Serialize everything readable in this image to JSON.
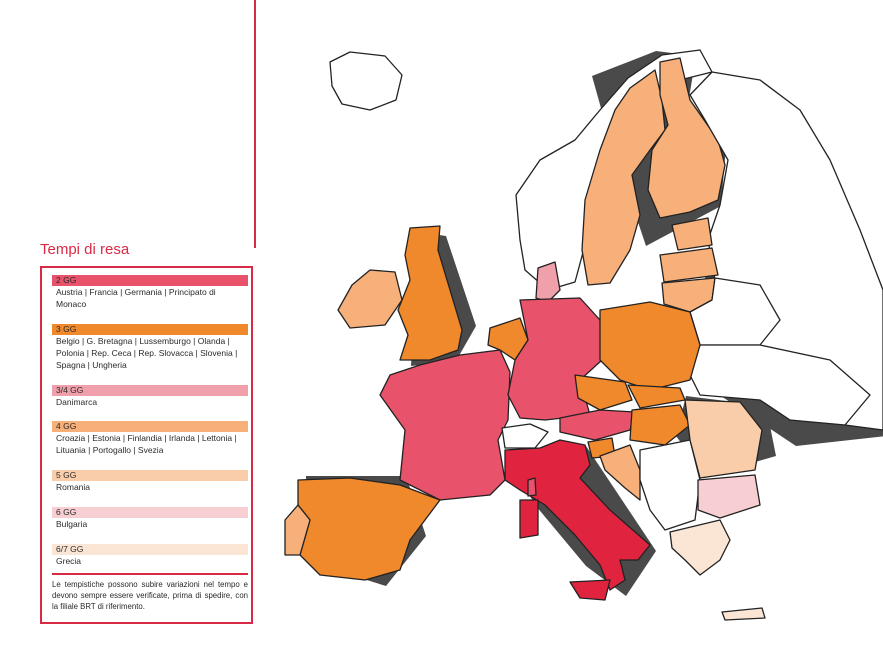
{
  "legend": {
    "title": "Tempi di resa",
    "entries": [
      {
        "label": "2 GG",
        "color": "#e8536b",
        "countries": "Austria | Francia | Germania | Principato di Monaco"
      },
      {
        "label": "3 GG",
        "color": "#f0882c",
        "countries": "Belgio | G. Bretagna | Lussemburgo | Olanda | Polonia | Rep. Ceca | Rep. Slovacca | Slovenia | Spagna | Ungheria"
      },
      {
        "label": "3/4 GG",
        "color": "#f0a0aa",
        "countries": "Danimarca"
      },
      {
        "label": "4 GG",
        "color": "#f7b07a",
        "countries": "Croazia | Estonia | Finlandia | Irlanda | Lettonia | Lituania | Portogallo | Svezia"
      },
      {
        "label": "5 GG",
        "color": "#f9cdaa",
        "countries": "Romania"
      },
      {
        "label": "6 GG",
        "color": "#f7cfd2",
        "countries": "Bulgaria"
      },
      {
        "label": "6/7 GG",
        "color": "#fbe6d6",
        "countries": "Grecia"
      }
    ],
    "note": "Le tempistiche possono subire variazioni nel tempo e devono sempre essere verificate, prima di spedire, con la filiale BRT di riferimento."
  },
  "colors": {
    "accent": "#d92a45",
    "italy": "#e0233f",
    "no_service": "#ffffff"
  }
}
